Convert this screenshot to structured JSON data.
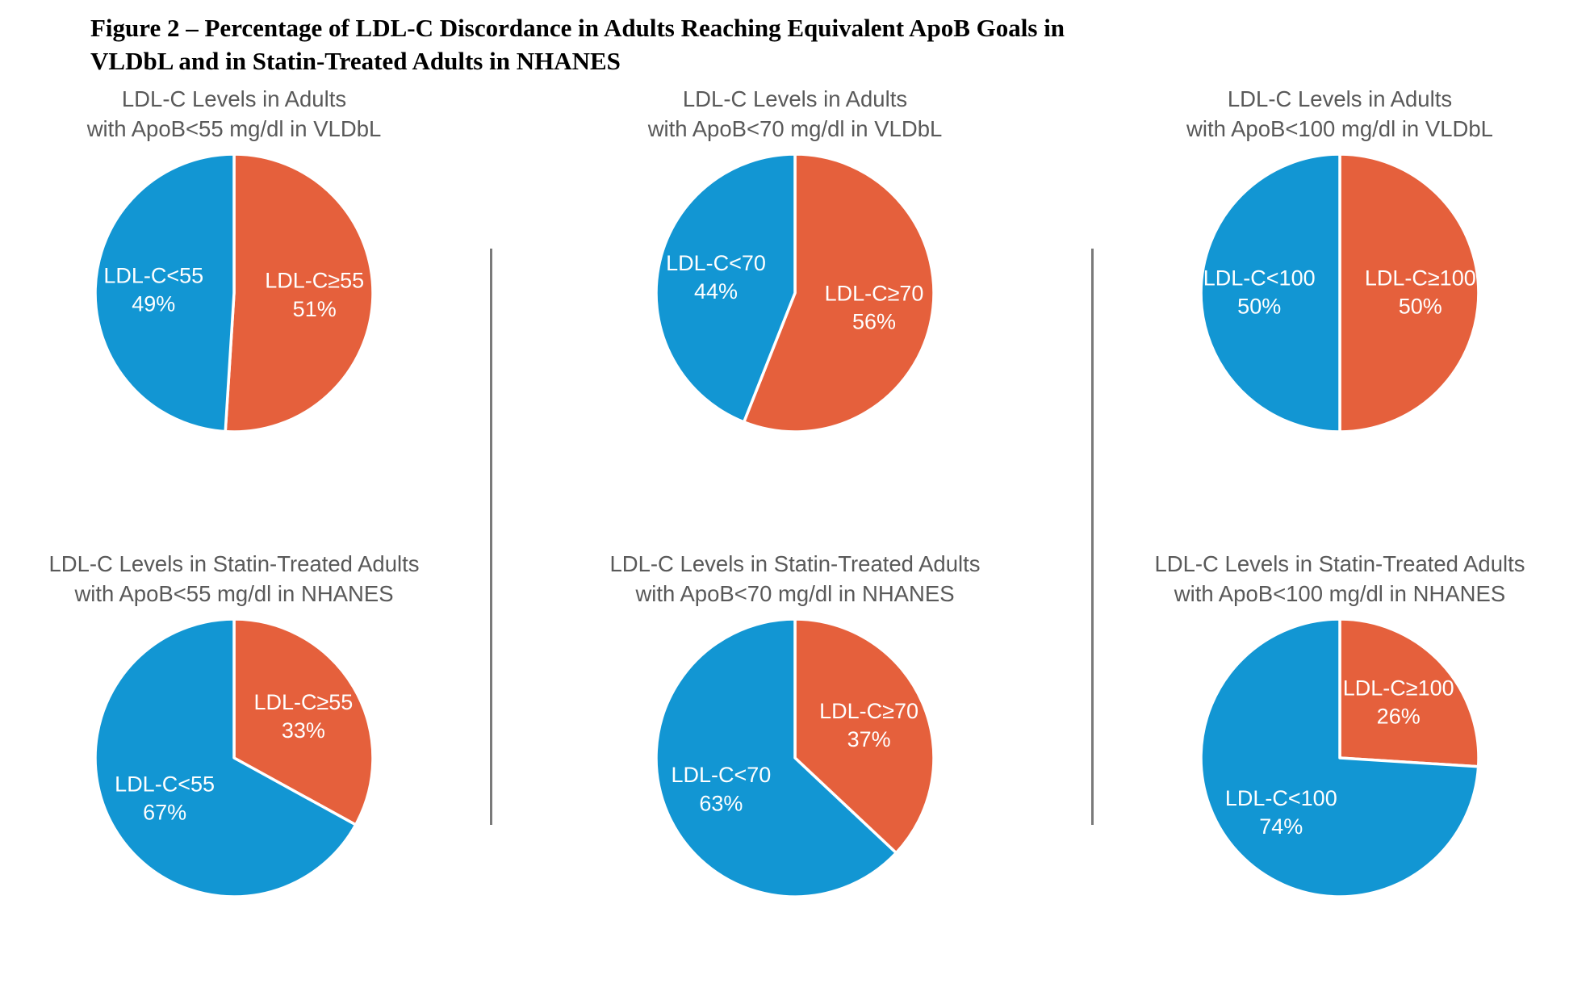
{
  "figure_title": "Figure 2 – Percentage of LDL-C Discordance in Adults Reaching Equivalent ApoB Goals in\nVLDbL and in Statin-Treated Adults in NHANES",
  "palette": {
    "blue": "#1296D3",
    "orange": "#E5603C",
    "label_text": "#FFFFFF",
    "chart_title_text": "#595959",
    "divider": "#7A7A7A"
  },
  "chart_data": [
    {
      "type": "pie",
      "title": "LDL-C Levels in Adults\nwith ApoB<55 mg/dl in VLDbL",
      "unit": "%",
      "start_angle_deg": 0,
      "direction": "clockwise",
      "slices": [
        {
          "label": "LDL-C≥55",
          "pct": 51,
          "color": "orange"
        },
        {
          "label": "LDL-C<55",
          "pct": 49,
          "color": "blue"
        }
      ]
    },
    {
      "type": "pie",
      "title": "LDL-C Levels in Adults\nwith ApoB<70 mg/dl in VLDbL",
      "unit": "%",
      "start_angle_deg": 0,
      "direction": "clockwise",
      "slices": [
        {
          "label": "LDL-C≥70",
          "pct": 56,
          "color": "orange"
        },
        {
          "label": "LDL-C<70",
          "pct": 44,
          "color": "blue"
        }
      ]
    },
    {
      "type": "pie",
      "title": "LDL-C Levels in Adults\nwith ApoB<100 mg/dl in VLDbL",
      "unit": "%",
      "start_angle_deg": 0,
      "direction": "clockwise",
      "slices": [
        {
          "label": "LDL-C≥100",
          "pct": 50,
          "color": "orange"
        },
        {
          "label": "LDL-C<100",
          "pct": 50,
          "color": "blue"
        }
      ]
    },
    {
      "type": "pie",
      "title": "LDL-C Levels in Statin-Treated Adults\nwith ApoB<55 mg/dl in NHANES",
      "unit": "%",
      "start_angle_deg": 0,
      "direction": "clockwise",
      "slices": [
        {
          "label": "LDL-C≥55",
          "pct": 33,
          "color": "orange"
        },
        {
          "label": "LDL-C<55",
          "pct": 67,
          "color": "blue"
        }
      ]
    },
    {
      "type": "pie",
      "title": "LDL-C Levels in Statin-Treated Adults\nwith ApoB<70 mg/dl in NHANES",
      "unit": "%",
      "start_angle_deg": 0,
      "direction": "clockwise",
      "slices": [
        {
          "label": "LDL-C≥70",
          "pct": 37,
          "color": "orange"
        },
        {
          "label": "LDL-C<70",
          "pct": 63,
          "color": "blue"
        }
      ]
    },
    {
      "type": "pie",
      "title": "LDL-C Levels in Statin-Treated Adults\nwith ApoB<100 mg/dl in NHANES",
      "unit": "%",
      "start_angle_deg": 0,
      "direction": "clockwise",
      "slices": [
        {
          "label": "LDL-C≥100",
          "pct": 26,
          "color": "orange"
        },
        {
          "label": "LDL-C<100",
          "pct": 74,
          "color": "blue"
        }
      ]
    }
  ]
}
